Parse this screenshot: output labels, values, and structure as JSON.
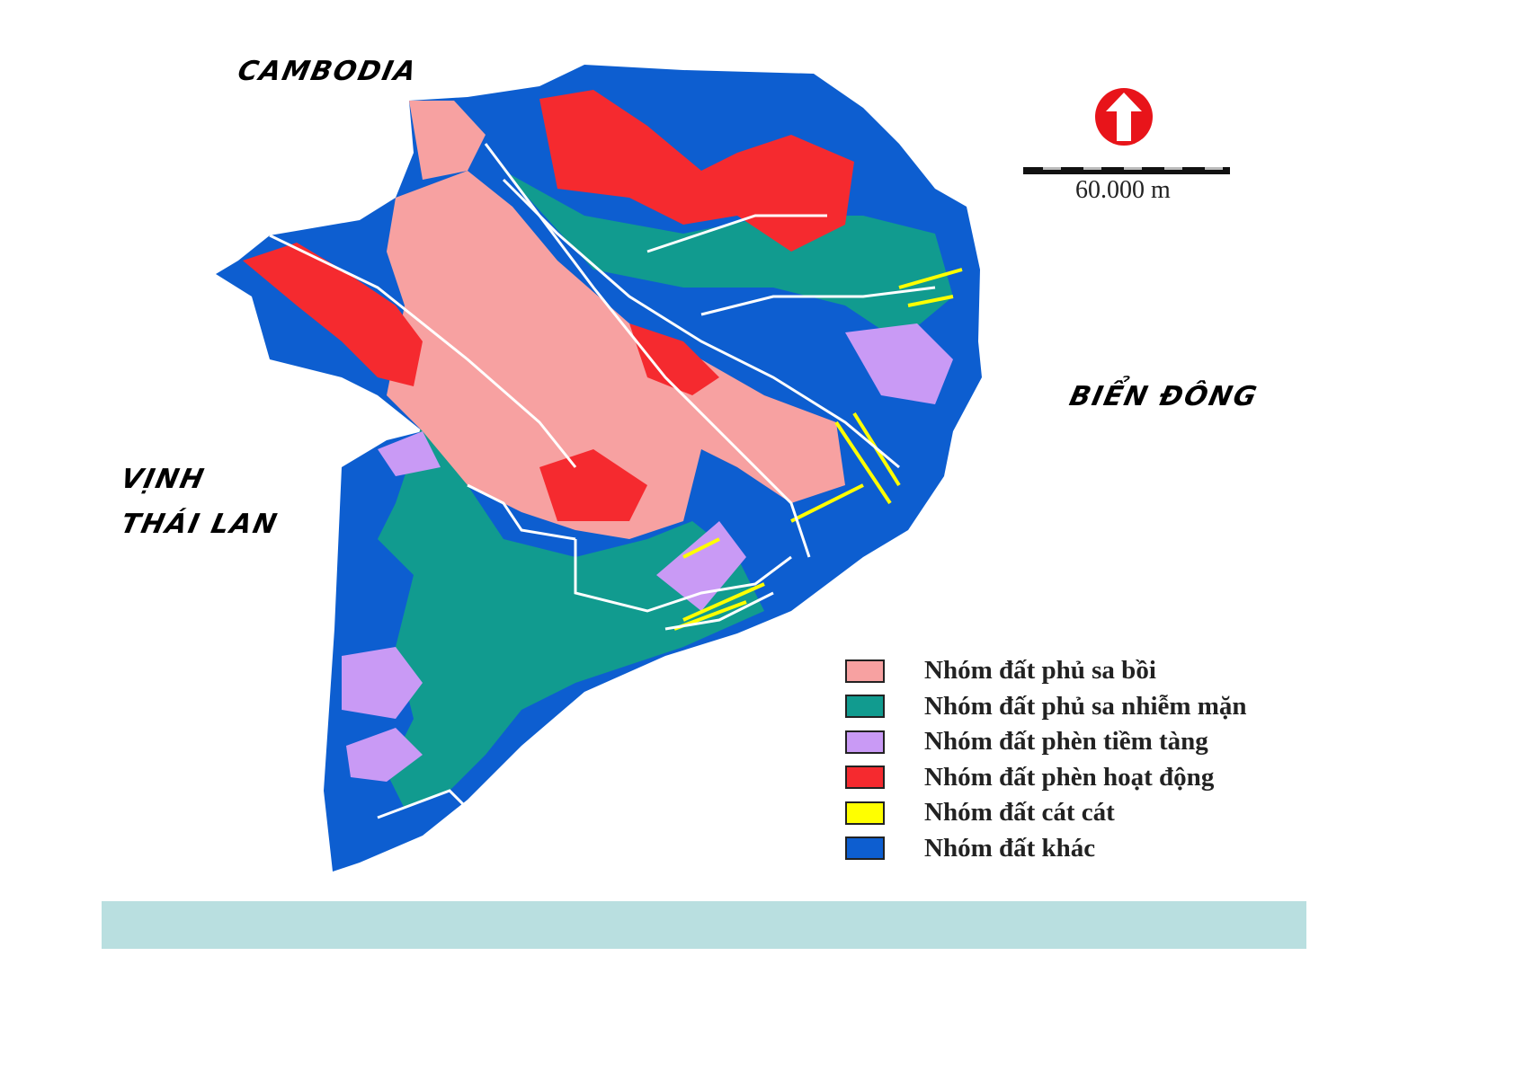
{
  "labels": {
    "cambodia": "CAMBODIA",
    "bien_dong": "BIỂN ĐÔNG",
    "vinh": "VỊNH",
    "thai_lan": "THÁI LAN"
  },
  "scale": {
    "label": "60.000 m"
  },
  "north_arrow": {
    "icon": "north-arrow-icon",
    "color": "#e8141a"
  },
  "legend": [
    {
      "label": "Nhóm đất phủ sa bồi",
      "color": "#f7a1a1"
    },
    {
      "label": "Nhóm đất phủ sa nhiễm mặn",
      "color": "#119b8f"
    },
    {
      "label": "Nhóm đất phèn tiềm tàng",
      "color": "#c99af5"
    },
    {
      "label": "Nhóm đất phèn hoạt động",
      "color": "#f52a2f"
    },
    {
      "label": "Nhóm đất cát cát",
      "color": "#ffff00"
    },
    {
      "label": "Nhóm đất khác",
      "color": "#0d5ed0"
    }
  ]
}
